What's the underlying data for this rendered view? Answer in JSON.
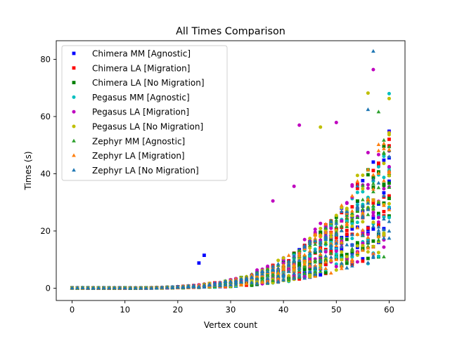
{
  "chart_data": {
    "type": "scatter",
    "title": "All Times Comparison",
    "xlabel": "Vertex count",
    "ylabel": "Times (s)",
    "xlim": [
      -3,
      63
    ],
    "ylim": [
      -4.3,
      86.5
    ],
    "x_ticks": [
      0,
      10,
      20,
      30,
      40,
      50,
      60
    ],
    "y_ticks": [
      0,
      20,
      40,
      60,
      80
    ],
    "grid": false,
    "legend_position": "top-left",
    "series": [
      {
        "name": "Chimera MM [Agnostic]",
        "color": "#0000ff",
        "marker": "square"
      },
      {
        "name": "Chimera LA [Migration]",
        "color": "#ff0000",
        "marker": "square"
      },
      {
        "name": "Chimera LA [No Migration]",
        "color": "#008000",
        "marker": "square"
      },
      {
        "name": "Pegasus MM [Agnostic]",
        "color": "#00bfbf",
        "marker": "circle"
      },
      {
        "name": "Pegasus LA [Migration]",
        "color": "#bf00bf",
        "marker": "circle"
      },
      {
        "name": "Pegasus LA [No Migration]",
        "color": "#bfbf00",
        "marker": "circle"
      },
      {
        "name": "Zephyr MM [Agnostic]",
        "color": "#2ca02c",
        "marker": "triangle"
      },
      {
        "name": "Zephyr LA [Migration]",
        "color": "#ff7f0e",
        "marker": "triangle"
      },
      {
        "name": "Zephyr LA [No Migration]",
        "color": "#1f77b4",
        "marker": "triangle"
      }
    ],
    "notable_points": [
      {
        "series": "Zephyr LA [No Migration]",
        "x": 57,
        "y": 82.8
      },
      {
        "series": "Pegasus LA [Migration]",
        "x": 57,
        "y": 76.4
      },
      {
        "series": "Pegasus LA [No Migration]",
        "x": 56,
        "y": 68.2
      },
      {
        "series": "Pegasus MM [Agnostic]",
        "x": 60,
        "y": 68.0
      },
      {
        "series": "Pegasus LA [No Migration]",
        "x": 60,
        "y": 66.3
      },
      {
        "series": "Zephyr LA [No Migration]",
        "x": 56,
        "y": 62.4
      },
      {
        "series": "Zephyr MM [Agnostic]",
        "x": 58,
        "y": 61.6
      },
      {
        "series": "Pegasus LA [Migration]",
        "x": 50,
        "y": 57.9
      },
      {
        "series": "Pegasus LA [Migration]",
        "x": 43,
        "y": 57.0
      },
      {
        "series": "Pegasus LA [No Migration]",
        "x": 47,
        "y": 56.3
      },
      {
        "series": "Pegasus LA [Migration]",
        "x": 42,
        "y": 35.6
      },
      {
        "series": "Pegasus LA [Migration]",
        "x": 38,
        "y": 30.5
      },
      {
        "series": "Chimera MM [Agnostic]",
        "x": 25,
        "y": 11.5
      },
      {
        "series": "Chimera MM [Agnostic]",
        "x": 24,
        "y": 8.8
      }
    ]
  }
}
